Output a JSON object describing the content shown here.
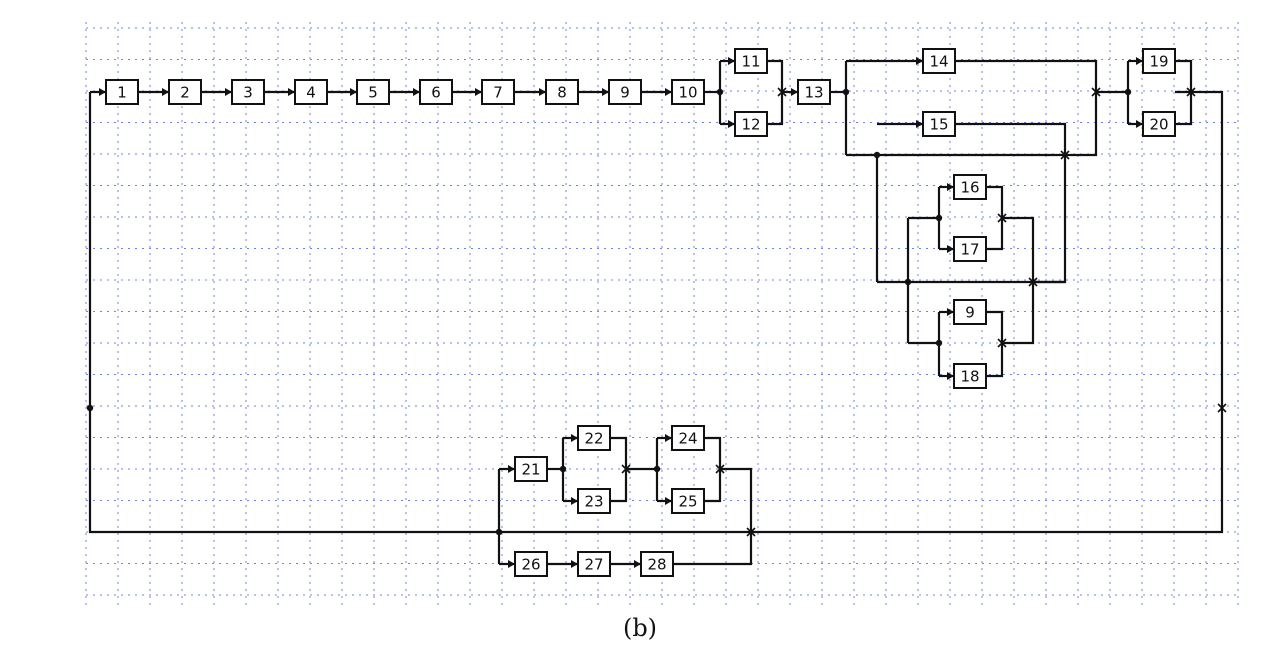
{
  "caption": "(b)",
  "colors": {
    "grid": "#3b5bdb",
    "line": "#111111",
    "box_fill": "#ffffff"
  },
  "blocks": [
    {
      "id": "b1",
      "label": "1"
    },
    {
      "id": "b2",
      "label": "2"
    },
    {
      "id": "b3",
      "label": "3"
    },
    {
      "id": "b4",
      "label": "4"
    },
    {
      "id": "b5",
      "label": "5"
    },
    {
      "id": "b6",
      "label": "6"
    },
    {
      "id": "b7",
      "label": "7"
    },
    {
      "id": "b8",
      "label": "8"
    },
    {
      "id": "b9a",
      "label": "9"
    },
    {
      "id": "b10",
      "label": "10"
    },
    {
      "id": "b11",
      "label": "11"
    },
    {
      "id": "b12",
      "label": "12"
    },
    {
      "id": "b13",
      "label": "13"
    },
    {
      "id": "b14",
      "label": "14"
    },
    {
      "id": "b15",
      "label": "15"
    },
    {
      "id": "b16",
      "label": "16"
    },
    {
      "id": "b17",
      "label": "17"
    },
    {
      "id": "b9b",
      "label": "9"
    },
    {
      "id": "b18",
      "label": "18"
    },
    {
      "id": "b19",
      "label": "19"
    },
    {
      "id": "b20",
      "label": "20"
    },
    {
      "id": "b21",
      "label": "21"
    },
    {
      "id": "b22",
      "label": "22"
    },
    {
      "id": "b23",
      "label": "23"
    },
    {
      "id": "b24",
      "label": "24"
    },
    {
      "id": "b25",
      "label": "25"
    },
    {
      "id": "b26",
      "label": "26"
    },
    {
      "id": "b27",
      "label": "27"
    },
    {
      "id": "b28",
      "label": "28"
    }
  ]
}
